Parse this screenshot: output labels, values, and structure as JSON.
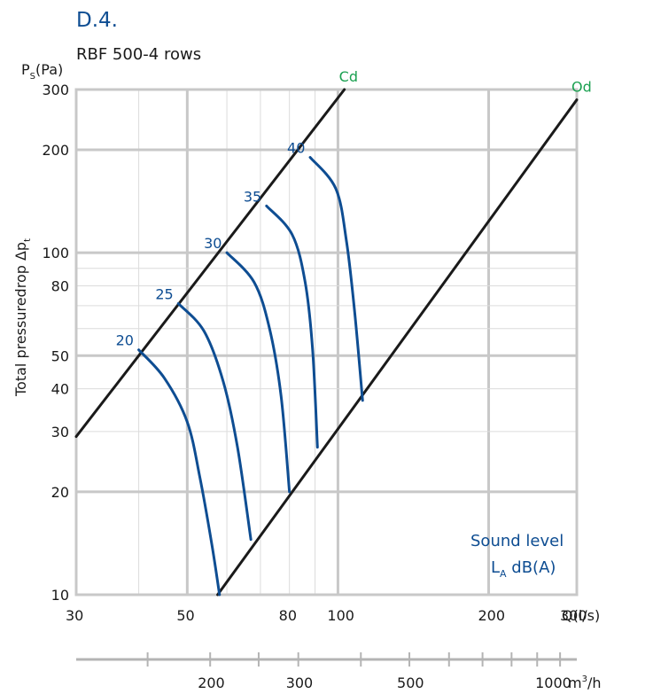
{
  "header": {
    "code": "D.4.",
    "subtitle": "RBF 500-4 rows"
  },
  "colors": {
    "blue": "#0e4d92",
    "green": "#1aa050",
    "grid_major": "#c8c8c8",
    "grid_minor": "#dcdcdc",
    "line": "#1a1a1a"
  },
  "chart_data": {
    "type": "line",
    "x_scale": "log",
    "y_scale": "log",
    "xlim": [
      30,
      300
    ],
    "ylim": [
      10,
      300
    ],
    "x_ticks": [
      30,
      50,
      80,
      100,
      200,
      300
    ],
    "x_tick_labels": [
      "30",
      "50",
      "80",
      "100",
      "200",
      "300"
    ],
    "y_ticks": [
      10,
      20,
      30,
      40,
      50,
      80,
      100,
      200,
      300
    ],
    "y_tick_labels": [
      "10",
      "20",
      "30",
      "40",
      "50",
      "80",
      "100",
      "200",
      "300"
    ],
    "xlabel": "Q(l/s)",
    "ylabel_top": "P",
    "ylabel_top_sub": "S",
    "ylabel_top_unit": "(Pa)",
    "ylabel_side": "Total pressuredrop Δp",
    "ylabel_side_sub": "t",
    "secondary_x_ticks": [
      200,
      300,
      500,
      1000
    ],
    "secondary_x_tick_labels": [
      "200",
      "300",
      "500",
      "1000"
    ],
    "secondary_x_unit": "m",
    "secondary_x_unit_sup": "3",
    "secondary_x_unit_tail": "/h",
    "boundary_lines": [
      {
        "name": "Cd",
        "points": [
          [
            30,
            29
          ],
          [
            103,
            300
          ]
        ]
      },
      {
        "name": "Od",
        "points": [
          [
            57.5,
            10
          ],
          [
            300,
            280
          ]
        ]
      }
    ],
    "series": [
      {
        "name": "20",
        "points": [
          [
            40,
            52
          ],
          [
            45,
            43
          ],
          [
            50,
            32
          ],
          [
            53,
            22
          ],
          [
            56,
            14
          ],
          [
            58,
            10
          ]
        ]
      },
      {
        "name": "25",
        "points": [
          [
            48,
            71
          ],
          [
            54,
            59
          ],
          [
            59,
            42
          ],
          [
            63,
            27
          ],
          [
            67,
            14.5
          ]
        ]
      },
      {
        "name": "30",
        "points": [
          [
            60,
            100
          ],
          [
            68,
            82
          ],
          [
            73,
            60
          ],
          [
            77,
            38
          ],
          [
            80,
            20
          ]
        ]
      },
      {
        "name": "35",
        "points": [
          [
            72,
            137
          ],
          [
            81,
            113
          ],
          [
            86,
            82
          ],
          [
            89,
            52
          ],
          [
            91,
            27
          ]
        ]
      },
      {
        "name": "40",
        "points": [
          [
            88,
            190
          ],
          [
            99,
            154
          ],
          [
            104,
            108
          ],
          [
            108,
            67
          ],
          [
            112,
            37
          ]
        ]
      }
    ],
    "legend_line1": "Sound level",
    "legend_line2": "L",
    "legend_line2_sub": "A",
    "legend_line2_tail": " dB(A)"
  }
}
